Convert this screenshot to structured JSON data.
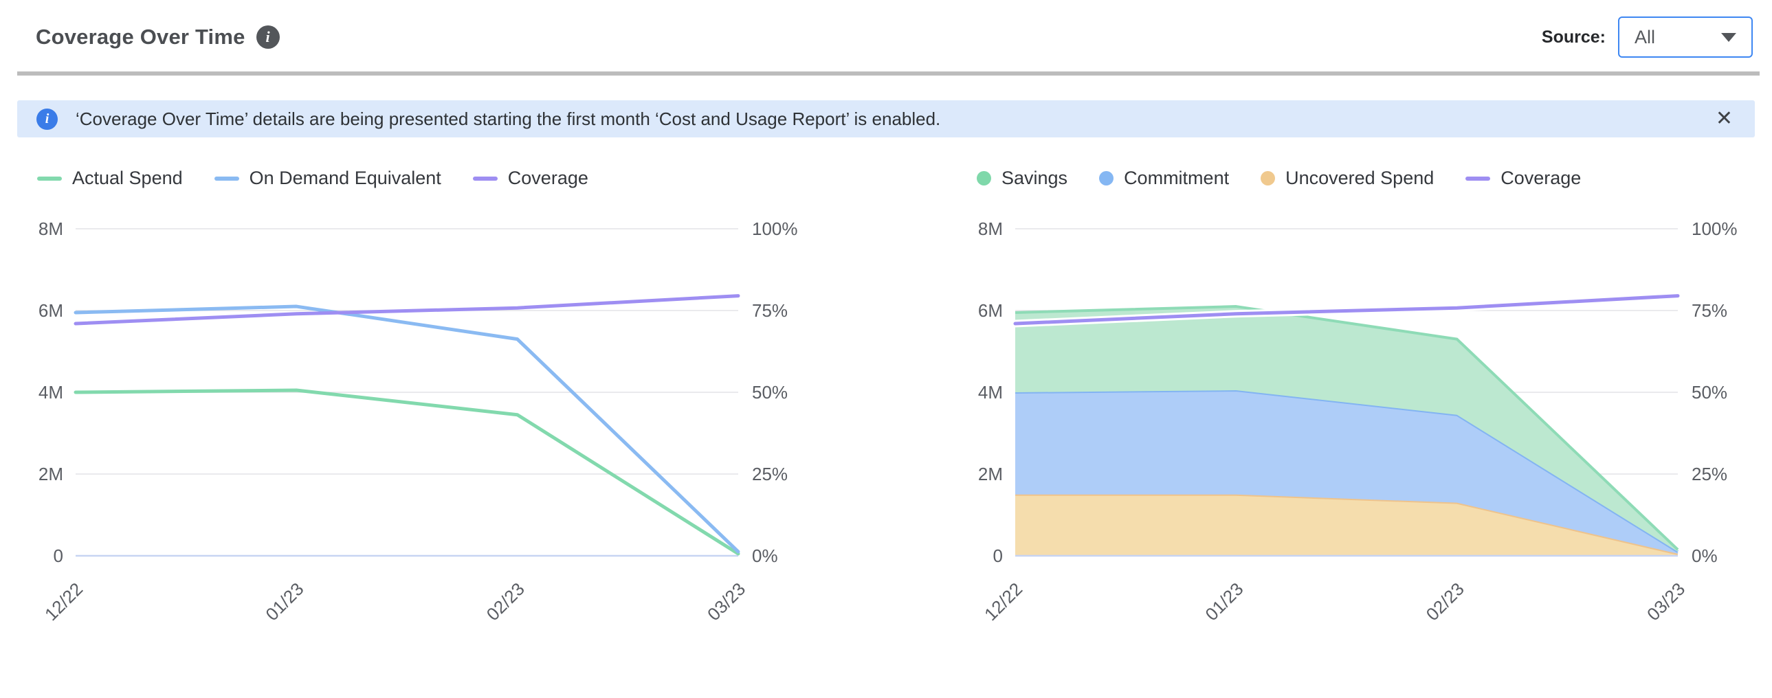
{
  "header": {
    "title": "Coverage Over Time",
    "info_icon": "i",
    "source_label": "Source:",
    "source_value": "All"
  },
  "banner": {
    "info_icon": "i",
    "text": "‘Coverage Over Time’ details are being presented starting the first month ‘Cost and Usage Report’ is enabled.",
    "close_icon": "✕"
  },
  "colors": {
    "grid": "#e4e4e7",
    "zero_axis": "#c7d4f2",
    "accent_blue_border": "#3e87f2",
    "banner_bg": "#dce9fb",
    "banner_icon": "#3a7ce8",
    "green_line": "#82d9ad",
    "blue_line": "#8abaf2",
    "purple_line": "#9e8ef2",
    "green_fill": "#bce8d0",
    "blue_fill": "#aecdf8",
    "orange_fill": "#f5ddad"
  },
  "legends": [
    {
      "items": [
        {
          "label": "Actual Spend",
          "swatch": "line",
          "color": "#82d9ad"
        },
        {
          "label": "On Demand Equivalent",
          "swatch": "line",
          "color": "#8abaf2"
        },
        {
          "label": "Coverage",
          "swatch": "line",
          "color": "#9e8ef2"
        }
      ]
    },
    {
      "items": [
        {
          "label": "Savings",
          "swatch": "dot",
          "color": "#7fd8aa"
        },
        {
          "label": "Commitment",
          "swatch": "dot",
          "color": "#85b7f3"
        },
        {
          "label": "Uncovered Spend",
          "swatch": "dot",
          "color": "#f0c98e"
        },
        {
          "label": "Coverage",
          "swatch": "line",
          "color": "#9e8ef2"
        }
      ]
    }
  ],
  "chart_data": [
    {
      "type": "line",
      "x_labels": [
        "12/22",
        "01/23",
        "02/23",
        "03/23"
      ],
      "y_left": {
        "max": 8,
        "ticks": [
          "0",
          "2M",
          "4M",
          "6M",
          "8M"
        ],
        "unit": "M (spend)"
      },
      "y_right": {
        "max": 100,
        "ticks": [
          "0%",
          "25%",
          "50%",
          "75%",
          "100%"
        ],
        "unit": "coverage %"
      },
      "grid": true,
      "series": [
        {
          "name": "Actual Spend",
          "kind": "line",
          "axis": "left",
          "color": "#82d9ad",
          "values": [
            4.0,
            4.05,
            3.45,
            0.05
          ]
        },
        {
          "name": "On Demand Equivalent",
          "kind": "line",
          "axis": "left",
          "color": "#8abaf2",
          "values": [
            5.95,
            6.1,
            5.3,
            0.1
          ]
        },
        {
          "name": "Coverage",
          "kind": "line",
          "axis": "right",
          "color": "#9e8ef2",
          "values": [
            71,
            74,
            75.8,
            79.5
          ]
        }
      ]
    },
    {
      "type": "area",
      "stacked": true,
      "x_labels": [
        "12/22",
        "01/23",
        "02/23",
        "03/23"
      ],
      "y_left": {
        "max": 8,
        "ticks": [
          "0",
          "2M",
          "4M",
          "6M",
          "8M"
        ],
        "unit": "M (spend)"
      },
      "y_right": {
        "max": 100,
        "ticks": [
          "0%",
          "25%",
          "50%",
          "75%",
          "100%"
        ],
        "unit": "coverage %"
      },
      "grid": true,
      "series": [
        {
          "name": "Uncovered Spend",
          "kind": "area",
          "axis": "left",
          "color": "#eec38c",
          "fill": "#f5ddad",
          "values": [
            1.5,
            1.5,
            1.3,
            0.05
          ]
        },
        {
          "name": "Commitment",
          "kind": "area",
          "axis": "left",
          "color": "#83b4f2",
          "fill": "#aecdf8",
          "values": [
            2.5,
            2.55,
            2.15,
            0.05
          ]
        },
        {
          "name": "Savings",
          "kind": "area",
          "axis": "left",
          "color": "#8edbb6",
          "fill": "#bce8d0",
          "values": [
            1.95,
            2.05,
            1.85,
            0.05
          ]
        },
        {
          "name": "Coverage",
          "kind": "line",
          "axis": "right",
          "color": "#9e8ef2",
          "halo": true,
          "values": [
            71,
            74,
            75.8,
            79.5
          ]
        }
      ]
    }
  ]
}
